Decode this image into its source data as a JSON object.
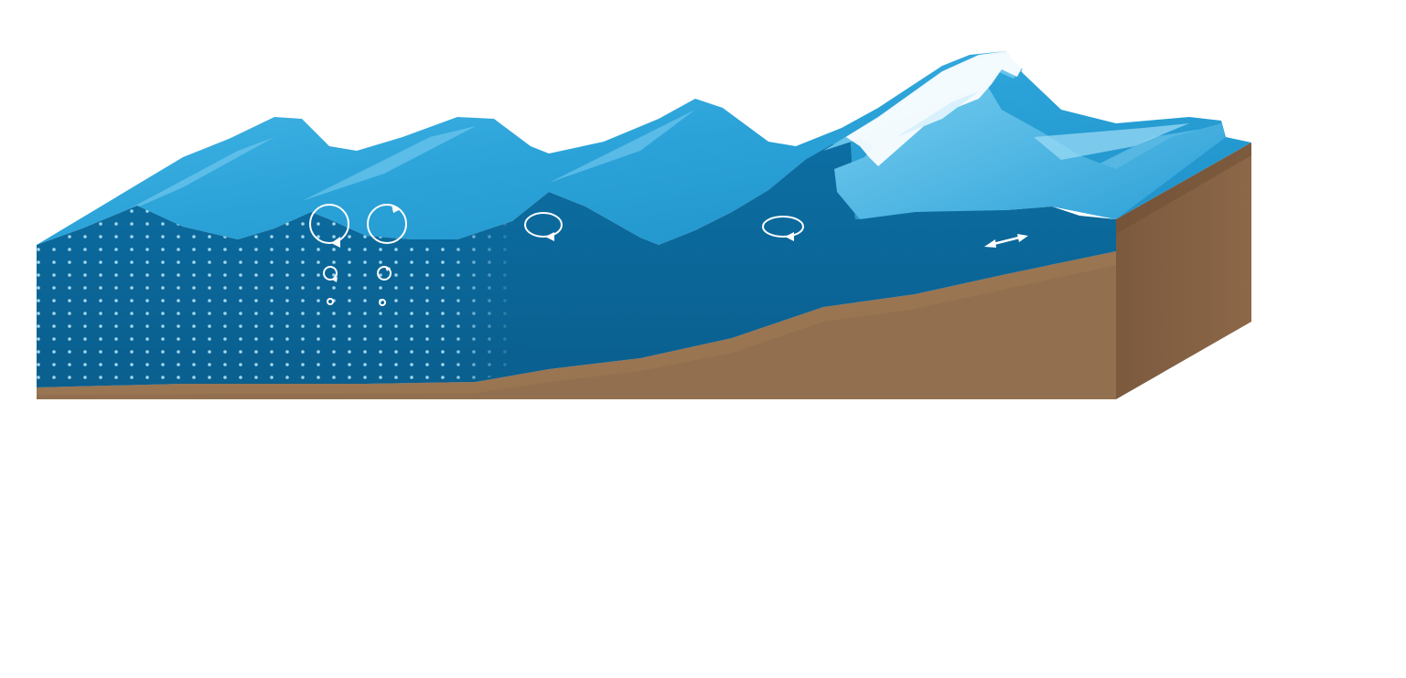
{
  "diagram": {
    "subject": "wave-orbital-motion-shoaling",
    "colors": {
      "water_deep": "#0a6a9c",
      "water_surface": "#2aa8df",
      "water_light": "#6ccbf0",
      "foam": "#ffffff",
      "sediment_side": "#8a6445",
      "sediment_top": "#a07a55",
      "sediment_dark": "#7a563a",
      "particle_dots": "#9fd6ee"
    },
    "icons": [
      "circular-orbit-arrow-icon",
      "elliptical-orbit-arrow-icon",
      "back-and-forth-arrow-icon"
    ]
  }
}
